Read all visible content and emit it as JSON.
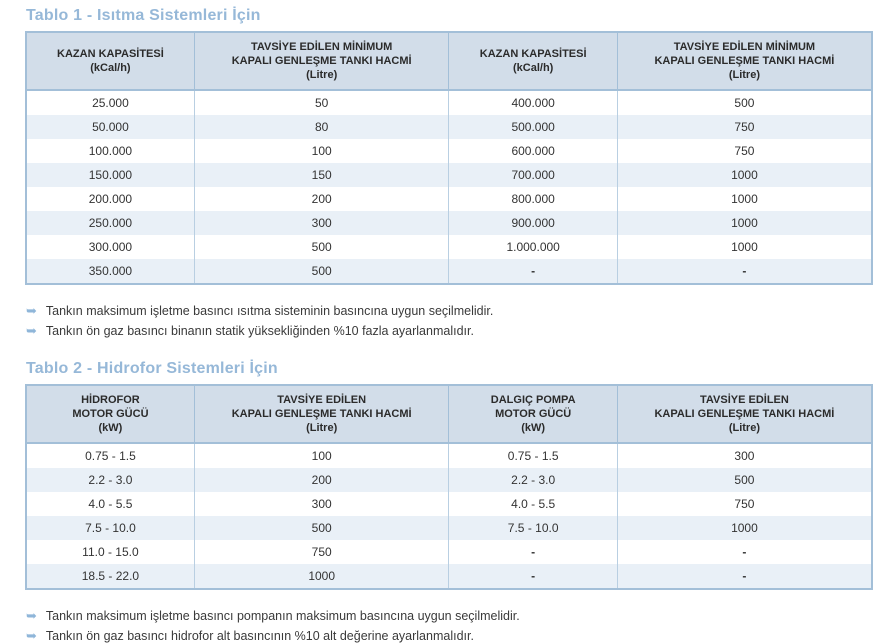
{
  "colors": {
    "accent": "#96b8d8",
    "header_bg": "#d2dde9",
    "row_alt_bg": "#e9f0f7",
    "border": "#a3bfd8",
    "border_light": "#b9cfe2",
    "text": "#333333",
    "note_arrow": "#8fb6d9"
  },
  "bullet_glyph": "➥",
  "table1": {
    "title": "Tablo 1 - Isıtma Sistemleri İçin",
    "headers": [
      "KAZAN KAPASİTESİ\n(kCal/h)",
      "TAVSİYE EDİLEN MİNİMUM\nKAPALI GENLEŞME TANKI HACMİ\n(Litre)",
      "KAZAN KAPASİTESİ\n(kCal/h)",
      "TAVSİYE EDİLEN MİNİMUM\nKAPALI GENLEŞME TANKI HACMİ\n(Litre)"
    ],
    "rows": [
      [
        "25.000",
        "50",
        "400.000",
        "500"
      ],
      [
        "50.000",
        "80",
        "500.000",
        "750"
      ],
      [
        "100.000",
        "100",
        "600.000",
        "750"
      ],
      [
        "150.000",
        "150",
        "700.000",
        "1000"
      ],
      [
        "200.000",
        "200",
        "800.000",
        "1000"
      ],
      [
        "250.000",
        "300",
        "900.000",
        "1000"
      ],
      [
        "300.000",
        "500",
        "1.000.000",
        "1000"
      ],
      [
        "350.000",
        "500",
        "-",
        "-"
      ]
    ],
    "notes": [
      "Tankın maksimum işletme basıncı ısıtma sisteminin basıncına uygun seçilmelidir.",
      "Tankın ön gaz basıncı binanın statik yüksekliğinden %10 fazla ayarlanmalıdır."
    ]
  },
  "table2": {
    "title": "Tablo 2 - Hidrofor Sistemleri İçin",
    "headers": [
      "HİDROFOR\nMOTOR GÜCÜ\n(kW)",
      "TAVSİYE EDİLEN\nKAPALI GENLEŞME TANKI HACMİ\n(Litre)",
      "DALGIÇ POMPA\nMOTOR GÜCÜ\n(kW)",
      "TAVSİYE EDİLEN\nKAPALI GENLEŞME TANKI HACMİ\n(Litre)"
    ],
    "rows": [
      [
        "0.75 - 1.5",
        "100",
        "0.75 - 1.5",
        "300"
      ],
      [
        "2.2 - 3.0",
        "200",
        "2.2 - 3.0",
        "500"
      ],
      [
        "4.0 - 5.5",
        "300",
        "4.0 - 5.5",
        "750"
      ],
      [
        "7.5 - 10.0",
        "500",
        "7.5 - 10.0",
        "1000"
      ],
      [
        "11.0 - 15.0",
        "750",
        "-",
        "-"
      ],
      [
        "18.5 - 22.0",
        "1000",
        "-",
        "-"
      ]
    ],
    "notes": [
      "Tankın maksimum işletme basıncı pompanın maksimum basıncına uygun seçilmelidir.",
      "Tankın ön gaz basıncı hidrofor alt basıncının %10 alt değerine ayarlanmalıdır."
    ]
  }
}
